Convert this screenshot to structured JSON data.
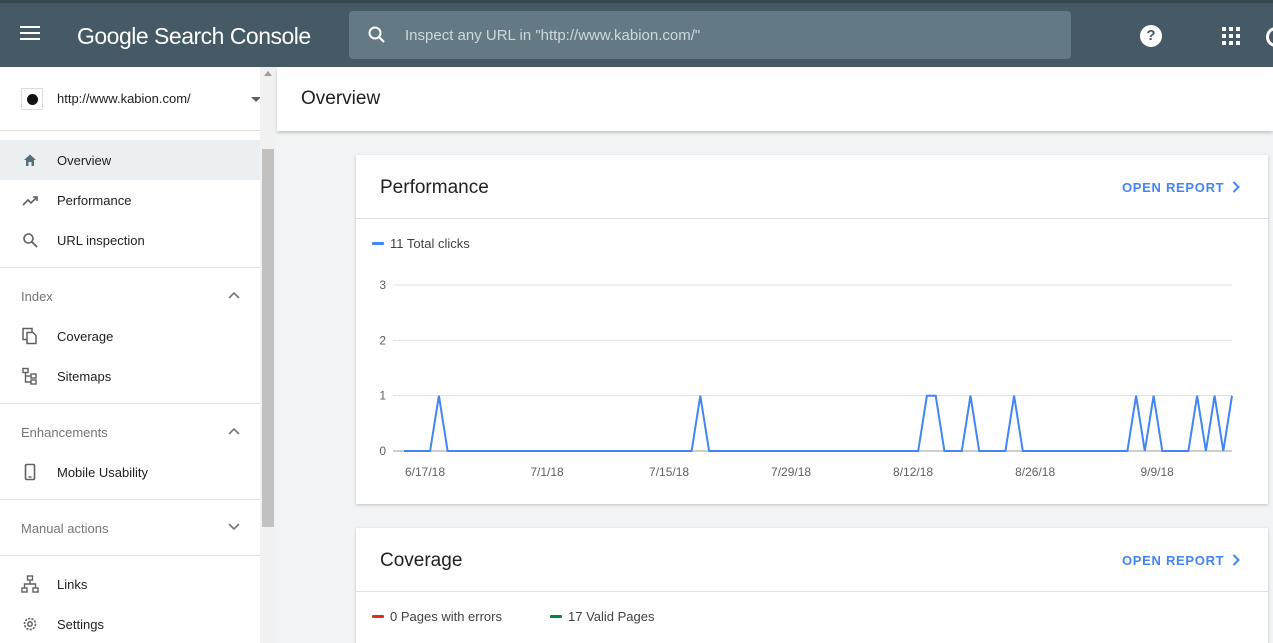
{
  "app": {
    "title": "Google Search Console",
    "search_placeholder": "Inspect any URL in \"http://www.kabion.com/\"",
    "help_label": "?"
  },
  "sidebar": {
    "property_url": "http://www.kabion.com/",
    "nav_top": [
      {
        "label": "Overview",
        "icon": "home-icon",
        "active": true
      },
      {
        "label": "Performance",
        "icon": "trending-up-icon"
      },
      {
        "label": "URL inspection",
        "icon": "search-icon"
      }
    ],
    "sections": [
      {
        "title": "Index",
        "expanded": true,
        "items": [
          {
            "label": "Coverage",
            "icon": "file-copy-icon"
          },
          {
            "label": "Sitemaps",
            "icon": "sitemap-icon"
          }
        ]
      },
      {
        "title": "Enhancements",
        "expanded": true,
        "items": [
          {
            "label": "Mobile Usability",
            "icon": "smartphone-icon"
          }
        ]
      },
      {
        "title": "Manual actions",
        "expanded": false,
        "items": []
      }
    ],
    "nav_bottom": [
      {
        "label": "Links",
        "icon": "links-icon"
      },
      {
        "label": "Settings",
        "icon": "gear-icon"
      }
    ]
  },
  "page": {
    "title": "Overview"
  },
  "performance_card": {
    "title": "Performance",
    "open_report": "OPEN REPORT",
    "legend": "11 Total clicks"
  },
  "coverage_card": {
    "title": "Coverage",
    "open_report": "OPEN REPORT",
    "legend_errors": "0 Pages with errors",
    "legend_valid": "17 Valid Pages"
  },
  "colors": {
    "header_bg": "#455a64",
    "accent": "#4285f4",
    "clicks_line": "#4285f4",
    "errors": "#d93025",
    "valid": "#0b8043"
  },
  "chart_data": {
    "type": "line",
    "series": [
      {
        "name": "Total clicks",
        "values": [
          0,
          0,
          0,
          0,
          1,
          0,
          0,
          0,
          0,
          0,
          0,
          0,
          0,
          0,
          0,
          0,
          0,
          0,
          0,
          0,
          0,
          0,
          0,
          0,
          0,
          0,
          0,
          0,
          0,
          0,
          0,
          0,
          0,
          0,
          1,
          0,
          0,
          0,
          0,
          0,
          0,
          0,
          0,
          0,
          0,
          0,
          0,
          0,
          0,
          0,
          0,
          0,
          0,
          0,
          0,
          0,
          0,
          0,
          0,
          0,
          1,
          1,
          0,
          0,
          0,
          1,
          0,
          0,
          0,
          0,
          1,
          0,
          0,
          0,
          0,
          0,
          0,
          0,
          0,
          0,
          0,
          0,
          0,
          0,
          1,
          0,
          1,
          0,
          0,
          0,
          0,
          1,
          0,
          1,
          0,
          1
        ]
      }
    ],
    "x_start": "6/17/18",
    "x_end": "9/9/18",
    "x_tick_labels": [
      "6/17/18",
      "7/1/18",
      "7/15/18",
      "7/29/18",
      "8/12/18",
      "8/26/18",
      "9/9/18"
    ],
    "y_ticks": [
      0,
      1,
      2,
      3
    ],
    "ylim": [
      0,
      3
    ],
    "grid": true
  }
}
